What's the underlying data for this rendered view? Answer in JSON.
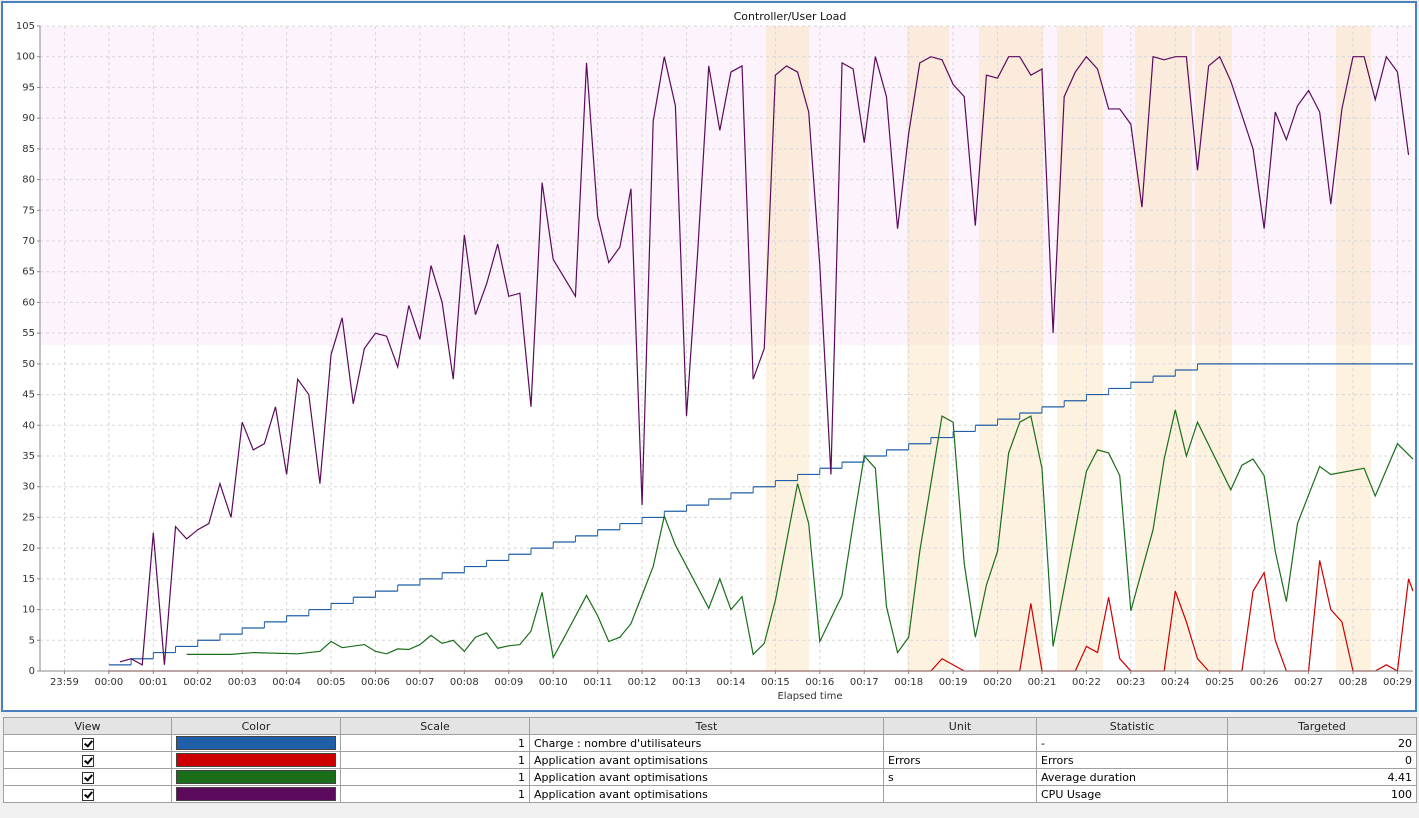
{
  "chart_data": {
    "type": "line",
    "title": "Controller/User Load",
    "x_label": "Elapsed time",
    "xlim": [
      -1.55,
      29.35
    ],
    "ylim": [
      0,
      105
    ],
    "grid": true,
    "xticks": [
      {
        "value": -1,
        "label": "23:59"
      },
      {
        "value": 0,
        "label": "00:00"
      },
      {
        "value": 1,
        "label": "00:01"
      },
      {
        "value": 2,
        "label": "00:02"
      },
      {
        "value": 3,
        "label": "00:03"
      },
      {
        "value": 4,
        "label": "00:04"
      },
      {
        "value": 5,
        "label": "00:05"
      },
      {
        "value": 6,
        "label": "00:06"
      },
      {
        "value": 7,
        "label": "00:07"
      },
      {
        "value": 8,
        "label": "00:08"
      },
      {
        "value": 9,
        "label": "00:09"
      },
      {
        "value": 10,
        "label": "00:10"
      },
      {
        "value": 11,
        "label": "00:11"
      },
      {
        "value": 12,
        "label": "00:12"
      },
      {
        "value": 13,
        "label": "00:13"
      },
      {
        "value": 14,
        "label": "00:14"
      },
      {
        "value": 15,
        "label": "00:15"
      },
      {
        "value": 16,
        "label": "00:16"
      },
      {
        "value": 17,
        "label": "00:17"
      },
      {
        "value": 18,
        "label": "00:18"
      },
      {
        "value": 19,
        "label": "00:19"
      },
      {
        "value": 20,
        "label": "00:20"
      },
      {
        "value": 21,
        "label": "00:21"
      },
      {
        "value": 22,
        "label": "00:22"
      },
      {
        "value": 23,
        "label": "00:23"
      },
      {
        "value": 24,
        "label": "00:24"
      },
      {
        "value": 25,
        "label": "00:25"
      },
      {
        "value": 26,
        "label": "00:26"
      },
      {
        "value": 27,
        "label": "00:27"
      },
      {
        "value": 28,
        "label": "00:28"
      },
      {
        "value": 29,
        "label": "00:29"
      }
    ],
    "yticks": [
      0,
      5,
      10,
      15,
      20,
      25,
      30,
      35,
      40,
      45,
      50,
      55,
      60,
      65,
      70,
      75,
      80,
      85,
      90,
      95,
      100,
      105
    ],
    "series": [
      {
        "color": "#1f5fa8",
        "step": true,
        "x": [
          0,
          0.5,
          1,
          1.5,
          2,
          2.5,
          3,
          3.5,
          4,
          4.5,
          5,
          5.5,
          6,
          6.5,
          7,
          7.5,
          8,
          8.5,
          9,
          9.5,
          10,
          10.5,
          11,
          11.5,
          12,
          12.5,
          13,
          13.5,
          14,
          14.5,
          15,
          15.5,
          16,
          16.5,
          17,
          17.5,
          18,
          18.5,
          19,
          19.5,
          20,
          20.5,
          21,
          21.5,
          22,
          22.5,
          23,
          23.5,
          24,
          24.5,
          29.35
        ],
        "values": [
          1,
          2,
          3,
          4,
          5,
          6,
          7,
          8,
          9,
          10,
          11,
          12,
          13,
          14,
          15,
          16,
          17,
          18,
          19,
          20,
          21,
          22,
          23,
          24,
          25,
          26,
          27,
          28,
          29,
          30,
          31,
          32,
          33,
          34,
          35,
          36,
          37,
          38,
          39,
          40,
          41,
          42,
          43,
          44,
          45,
          46,
          47,
          48,
          49,
          50,
          50
        ]
      },
      {
        "color": "#cc0000",
        "x": [
          0,
          18.5,
          18.75,
          19,
          19.25,
          20.5,
          20.75,
          21,
          21.75,
          22,
          22.25,
          22.5,
          22.75,
          23,
          23.75,
          24,
          24.25,
          24.5,
          24.75,
          25.5,
          25.75,
          26,
          26.25,
          26.5,
          27,
          27.25,
          27.5,
          27.75,
          28,
          28.5,
          28.75,
          29,
          29.25,
          29.35
        ],
        "values": [
          0,
          0,
          2,
          1,
          0,
          0,
          11,
          0,
          0,
          4,
          3,
          12,
          2,
          0,
          0,
          13,
          8,
          2,
          0,
          0,
          13,
          16,
          5,
          0,
          0,
          18,
          10,
          8,
          0,
          0,
          1,
          0,
          15,
          13
        ]
      },
      {
        "color": "#1a6e1a",
        "x": [
          1.75,
          2.75,
          3.25,
          4.25,
          4.75,
          5,
          5.25,
          5.75,
          6,
          6.25,
          6.5,
          6.75,
          7,
          7.25,
          7.5,
          7.75,
          8,
          8.25,
          8.5,
          8.75,
          9,
          9.25,
          9.5,
          9.75,
          10,
          10.25,
          10.75,
          11,
          11.25,
          11.5,
          11.75,
          12.25,
          12.5,
          12.75,
          13.5,
          13.75,
          14,
          14.25,
          14.5,
          14.75,
          15,
          15.25,
          15.5,
          15.75,
          16,
          16.5,
          16.75,
          17,
          17.25,
          17.5,
          17.75,
          18,
          18.25,
          18.75,
          19,
          19.25,
          19.5,
          19.75,
          20,
          20.25,
          20.5,
          20.75,
          21,
          21.25,
          22,
          22.25,
          22.5,
          22.75,
          23,
          23.5,
          23.75,
          24,
          24.25,
          24.5,
          25.25,
          25.5,
          25.75,
          26,
          26.25,
          26.5,
          26.75,
          27.25,
          27.5,
          28.25,
          28.5,
          29,
          29.35
        ],
        "values": [
          2.7,
          2.7,
          3,
          2.8,
          3.2,
          4.8,
          3.8,
          4.3,
          3.2,
          2.8,
          3.6,
          3.5,
          4.3,
          5.8,
          4.5,
          5,
          3.2,
          5.5,
          6.2,
          3.7,
          4.1,
          4.3,
          6.5,
          12.8,
          2.2,
          5.5,
          12.3,
          9,
          4.8,
          5.5,
          7.7,
          17,
          25.2,
          20.5,
          10.2,
          15,
          10,
          12.1,
          2.7,
          4.5,
          11.5,
          21,
          30.5,
          24,
          4.8,
          12.3,
          24,
          35,
          33,
          10.5,
          3,
          5.5,
          19.5,
          41.5,
          40.5,
          17.5,
          5.5,
          14,
          19.5,
          35.5,
          40.5,
          41.5,
          33,
          4,
          32.5,
          36,
          35.5,
          31.8,
          9.8,
          23,
          34.5,
          42.5,
          35,
          40.5,
          29.5,
          33.5,
          34.5,
          31.8,
          19.5,
          11.3,
          24,
          33.3,
          32,
          33,
          28.5,
          37,
          34.5
        ]
      },
      {
        "color": "#5c0a5c",
        "x": [
          0.25,
          0.5,
          0.75,
          1,
          1.25,
          1.5,
          1.75,
          2,
          2.25,
          2.5,
          2.75,
          3,
          3.25,
          3.5,
          3.75,
          4,
          4.25,
          4.5,
          4.75,
          5,
          5.25,
          5.5,
          5.75,
          6,
          6.25,
          6.5,
          6.75,
          7,
          7.25,
          7.5,
          7.75,
          8,
          8.25,
          8.5,
          8.75,
          9,
          9.25,
          9.5,
          9.75,
          10,
          10.25,
          10.5,
          10.75,
          11,
          11.25,
          11.5,
          11.75,
          12,
          12.25,
          12.5,
          12.75,
          13,
          13.25,
          13.5,
          13.75,
          14,
          14.25,
          14.5,
          14.75,
          15,
          15.25,
          15.5,
          15.75,
          16,
          16.25,
          16.5,
          16.75,
          17,
          17.25,
          17.5,
          17.75,
          18,
          18.25,
          18.5,
          18.75,
          19,
          19.25,
          19.5,
          19.75,
          20,
          20.25,
          20.5,
          20.75,
          21,
          21.25,
          21.5,
          21.75,
          22,
          22.25,
          22.5,
          22.75,
          23,
          23.25,
          23.5,
          23.75,
          24,
          24.25,
          24.5,
          24.75,
          25,
          25.25,
          25.75,
          26,
          26.25,
          26.5,
          26.75,
          27,
          27.25,
          27.5,
          27.75,
          28,
          28.25,
          28.5,
          28.75,
          29,
          29.25
        ],
        "values": [
          1.5,
          2,
          1,
          22.5,
          1,
          23.5,
          21.5,
          23,
          24,
          30.5,
          25,
          40.5,
          36,
          37,
          43,
          32,
          47.5,
          45,
          30.5,
          51.5,
          57.5,
          43.5,
          52.5,
          55,
          54.5,
          49.5,
          59.5,
          54,
          66,
          60,
          47.5,
          71,
          58,
          63,
          69.5,
          61,
          61.5,
          43,
          79.5,
          67,
          64,
          61,
          99,
          74,
          66.5,
          69,
          78.5,
          27,
          89.5,
          100,
          92,
          41.5,
          68,
          98.5,
          88,
          97.5,
          98.5,
          47.5,
          52.5,
          97,
          98.5,
          97.5,
          91,
          66,
          32,
          99,
          98,
          86,
          100,
          93.5,
          72,
          87.5,
          99,
          100,
          99.5,
          95.5,
          93.5,
          72.5,
          97,
          96.5,
          100,
          100,
          97,
          98,
          55,
          93.5,
          97.5,
          100,
          98,
          91.5,
          91.5,
          89,
          75.5,
          100,
          99.5,
          100,
          100,
          81.5,
          98.5,
          100,
          96,
          85,
          72,
          91,
          86.5,
          92,
          94.5,
          91,
          76,
          91.5,
          100,
          100,
          93,
          100,
          97.5,
          84
        ]
      }
    ]
  },
  "table": {
    "columns": [
      "View",
      "Color",
      "Scale",
      "Test",
      "Unit",
      "Statistic",
      "Targeted"
    ],
    "rows": [
      {
        "scale": 1,
        "test": "Charge : nombre d'utilisateurs",
        "statistic": "-",
        "targeted": 20
      },
      {
        "scale": 1,
        "test": "Application avant optimisations",
        "unit": "Errors",
        "statistic": "Errors",
        "targeted": 0
      },
      {
        "scale": 1,
        "test": "Application avant optimisations",
        "unit": "s",
        "statistic": "Average duration",
        "targeted": 4.41
      },
      {
        "scale": 1,
        "test": "Application avant optimisations",
        "statistic": "CPU Usage",
        "targeted": 100
      }
    ]
  }
}
